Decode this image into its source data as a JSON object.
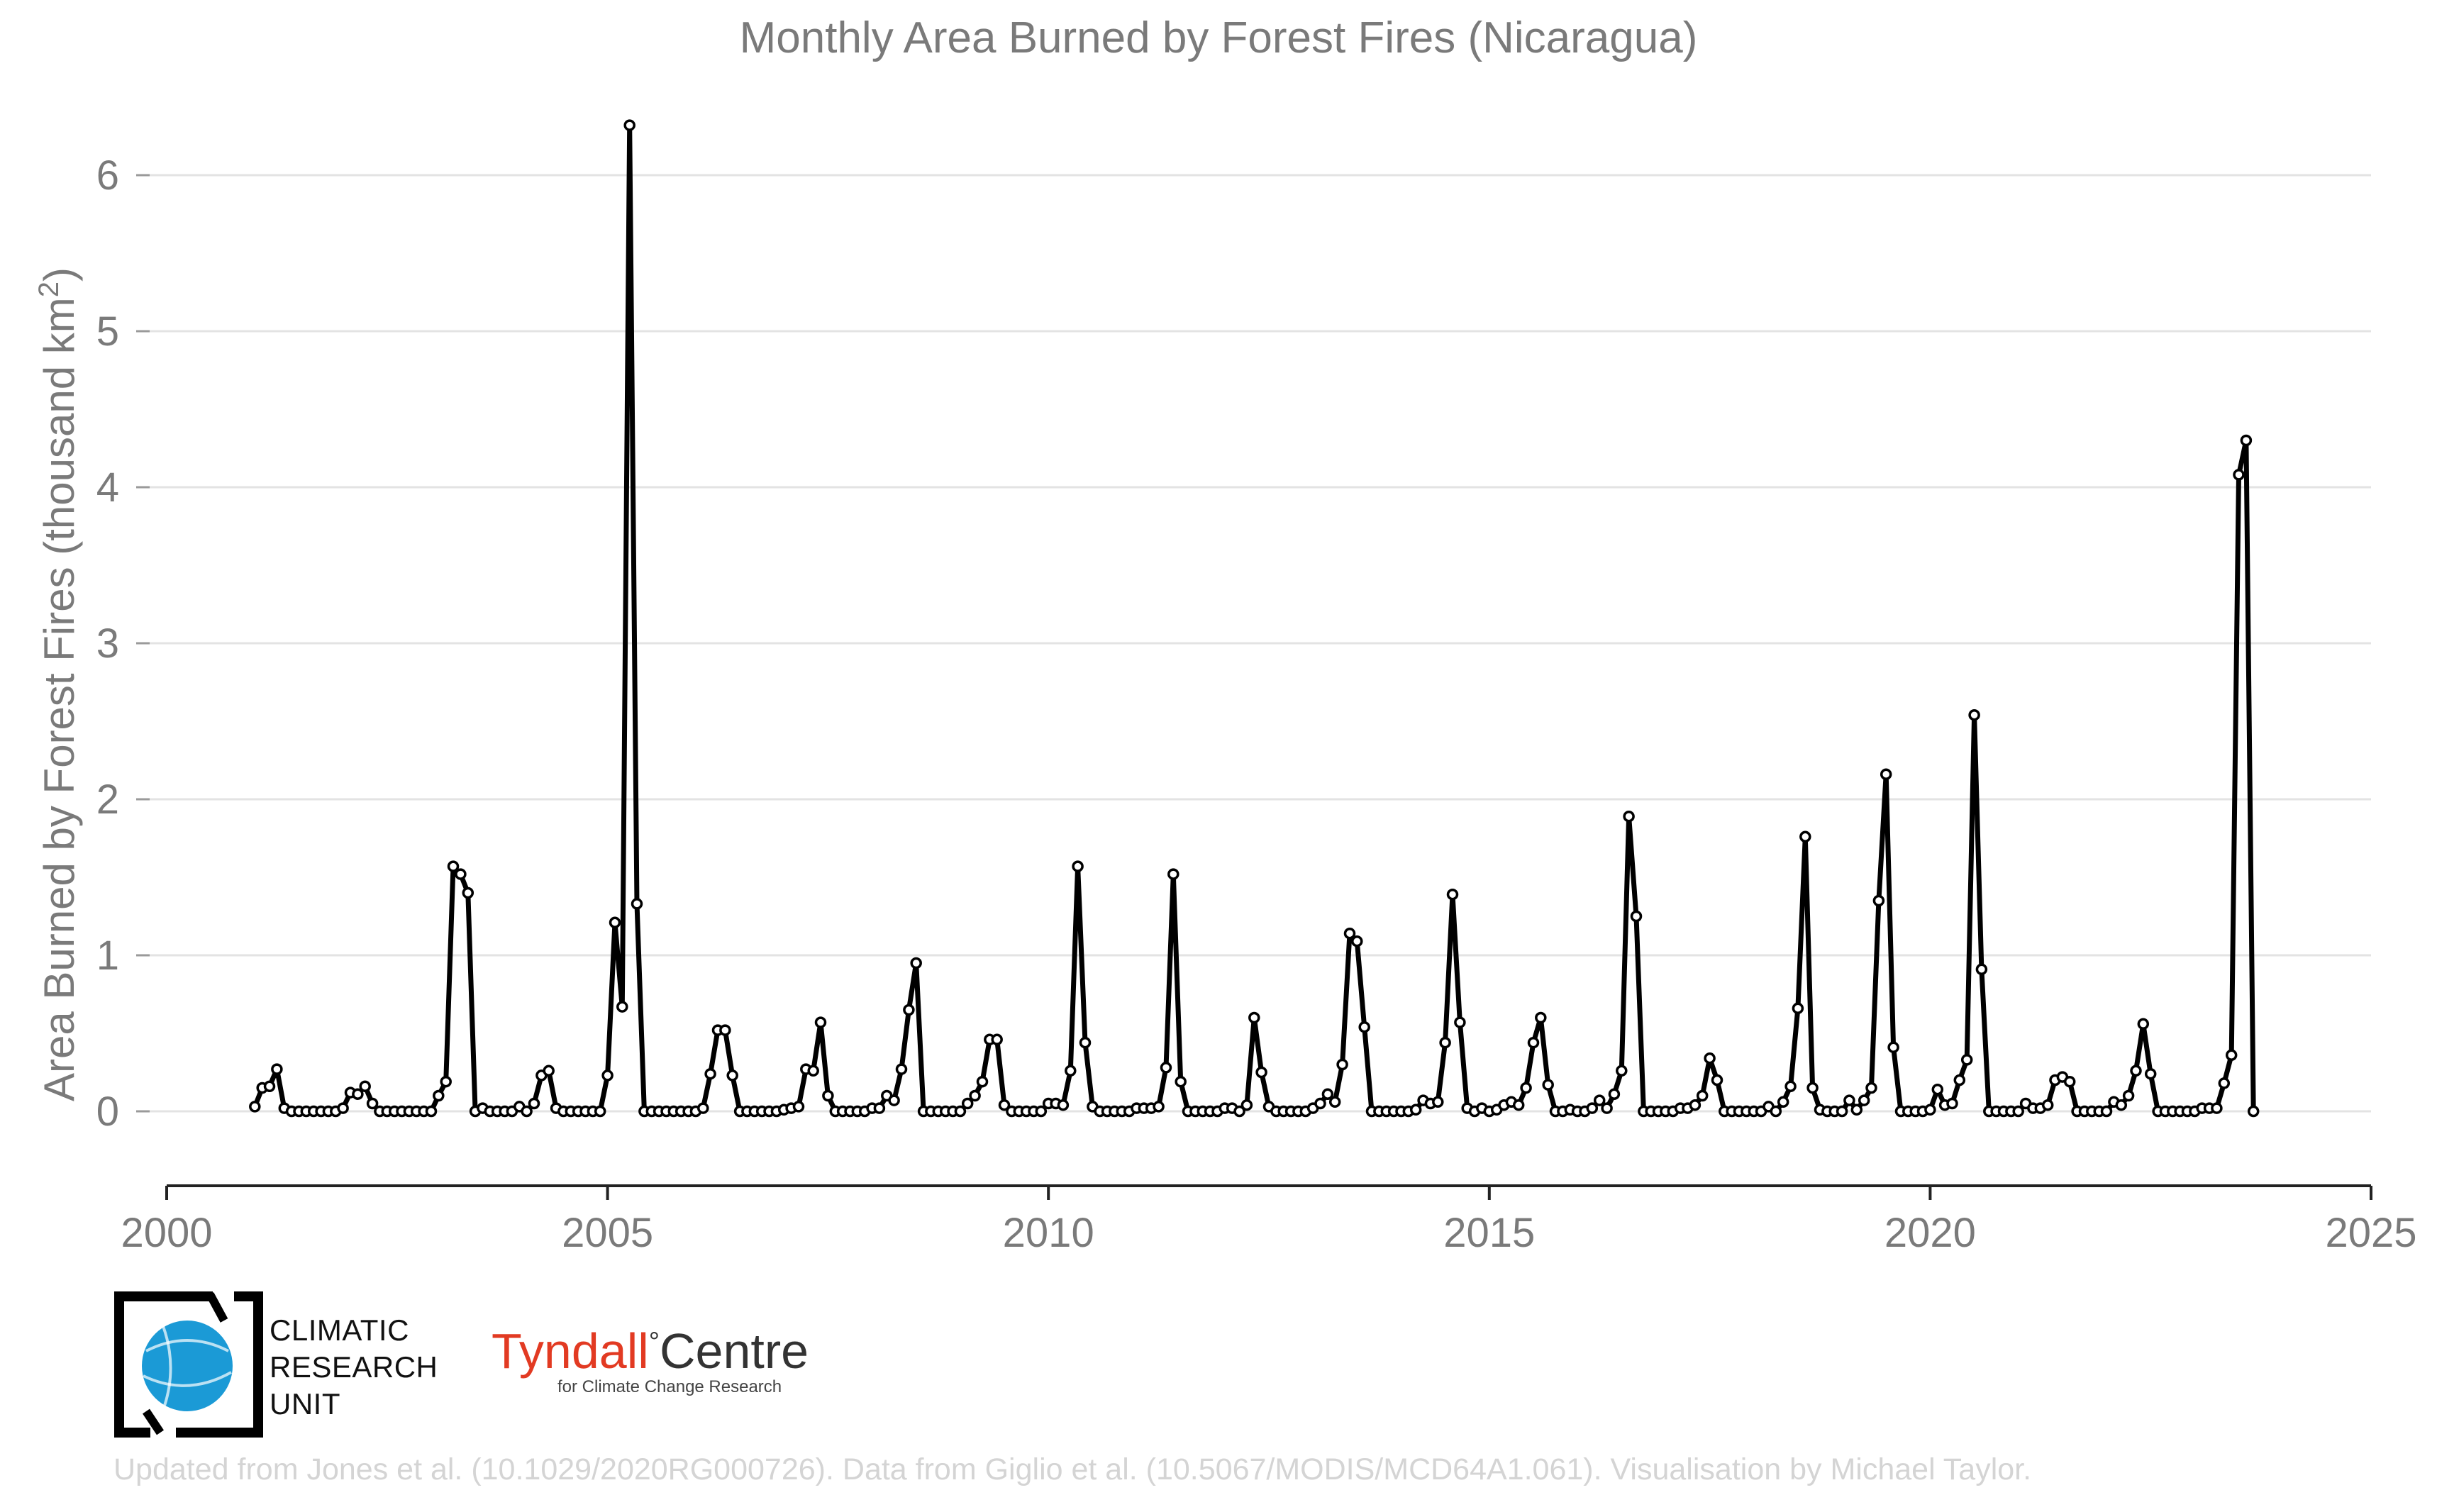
{
  "chart_data": {
    "type": "line",
    "title": "Monthly Area Burned by Forest Fires (Nicaragua)",
    "xlabel": "",
    "ylabel": "Area Burned by Forest Fires (thousand km²)",
    "ylabel_main": "Area Burned by Forest Fires (thousand km",
    "ylabel_sup": "2",
    "ylabel_end": ")",
    "xlim": [
      2000,
      2025
    ],
    "ylim": [
      -0.47,
      6.5
    ],
    "xticks": [
      2000,
      2005,
      2010,
      2015,
      2020,
      2025
    ],
    "yticks": [
      0,
      1,
      2,
      3,
      4,
      5,
      6
    ],
    "grid": "horizontal",
    "legend": "none",
    "series": [
      {
        "start": "2001-01",
        "values": [
          0.03,
          0.15,
          0.16,
          0.27,
          0.02,
          0,
          0,
          0,
          0,
          0,
          0,
          0,
          0.02,
          0.12,
          0.11,
          0.16,
          0.05,
          0,
          0,
          0,
          0,
          0,
          0,
          0,
          0,
          0.1,
          0.19,
          1.57,
          1.52,
          1.4,
          0,
          0.02,
          0,
          0,
          0,
          0,
          0.03,
          0,
          0.05,
          0.23,
          0.26,
          0.02,
          0,
          0,
          0,
          0,
          0,
          0,
          0.23,
          1.21,
          0.67,
          6.32,
          1.33,
          0,
          0,
          0,
          0,
          0,
          0,
          0,
          0,
          0.02,
          0.24,
          0.52,
          0.52,
          0.23,
          0,
          0,
          0,
          0,
          0,
          0,
          0.01,
          0.02,
          0.03,
          0.27,
          0.26,
          0.57,
          0.1,
          0,
          0,
          0,
          0,
          0,
          0.02,
          0.02,
          0.1,
          0.07,
          0.27,
          0.65,
          0.95,
          0,
          0,
          0,
          0,
          0,
          0,
          0.05,
          0.1,
          0.19,
          0.46,
          0.46,
          0.04,
          0,
          0,
          0,
          0,
          0,
          0.05,
          0.05,
          0.04,
          0.26,
          1.57,
          0.44,
          0.03,
          0,
          0,
          0,
          0,
          0,
          0.02,
          0.02,
          0.02,
          0.03,
          0.28,
          1.52,
          0.19,
          0,
          0,
          0,
          0,
          0,
          0.02,
          0.02,
          0,
          0.04,
          0.6,
          0.25,
          0.03,
          0,
          0,
          0,
          0,
          0,
          0.02,
          0.05,
          0.11,
          0.06,
          0.3,
          1.14,
          1.09,
          0.54,
          0,
          0,
          0,
          0,
          0,
          0,
          0.01,
          0.07,
          0.05,
          0.06,
          0.44,
          1.39,
          0.57,
          0.02,
          0,
          0.02,
          0,
          0.01,
          0.04,
          0.06,
          0.04,
          0.15,
          0.44,
          0.6,
          0.17,
          0,
          0,
          0.01,
          0,
          0,
          0.02,
          0.07,
          0.02,
          0.11,
          0.26,
          1.89,
          1.25,
          0,
          0,
          0,
          0,
          0,
          0.02,
          0.02,
          0.04,
          0.1,
          0.34,
          0.2,
          0,
          0,
          0,
          0,
          0,
          0,
          0.03,
          0,
          0.06,
          0.16,
          0.66,
          1.76,
          0.15,
          0.01,
          0,
          0,
          0,
          0.07,
          0.01,
          0.07,
          0.15,
          1.35,
          2.16,
          0.41,
          0,
          0,
          0,
          0,
          0.01,
          0.14,
          0.04,
          0.05,
          0.2,
          0.33,
          2.54,
          0.91,
          0,
          0,
          0,
          0,
          0,
          0.05,
          0.02,
          0.02,
          0.04,
          0.2,
          0.22,
          0.19,
          0,
          0,
          0,
          0,
          0,
          0.06,
          0.04,
          0.1,
          0.26,
          0.56,
          0.24,
          0,
          0,
          0,
          0,
          0,
          0,
          0.02,
          0.02,
          0.02,
          0.18,
          0.36,
          4.08,
          4.3,
          0
        ]
      }
    ]
  },
  "logos": {
    "cru": "CLIMATIC RESEARCH UNIT",
    "cru_lines": [
      "CLIMATIC",
      "RESEARCH",
      "UNIT"
    ],
    "tyndall_name": "Tyndall",
    "tyndall_degree": "°",
    "tyndall_centre": "Centre",
    "tyndall_sub": "for Climate Change Research"
  },
  "credit": "Updated from Jones et al. (10.1029/2020RG000726). Data from Giglio et al. (10.5067/MODIS/MCD64A1.061). Visualisation by Michael Taylor.",
  "colors": {
    "line": "#000000",
    "grid": "#e3e3e3",
    "axis_text": "#7a7a7a",
    "credit": "#d4d4d4",
    "cru_globe": "#1b9ad6",
    "tyndall": "#e23a22"
  }
}
